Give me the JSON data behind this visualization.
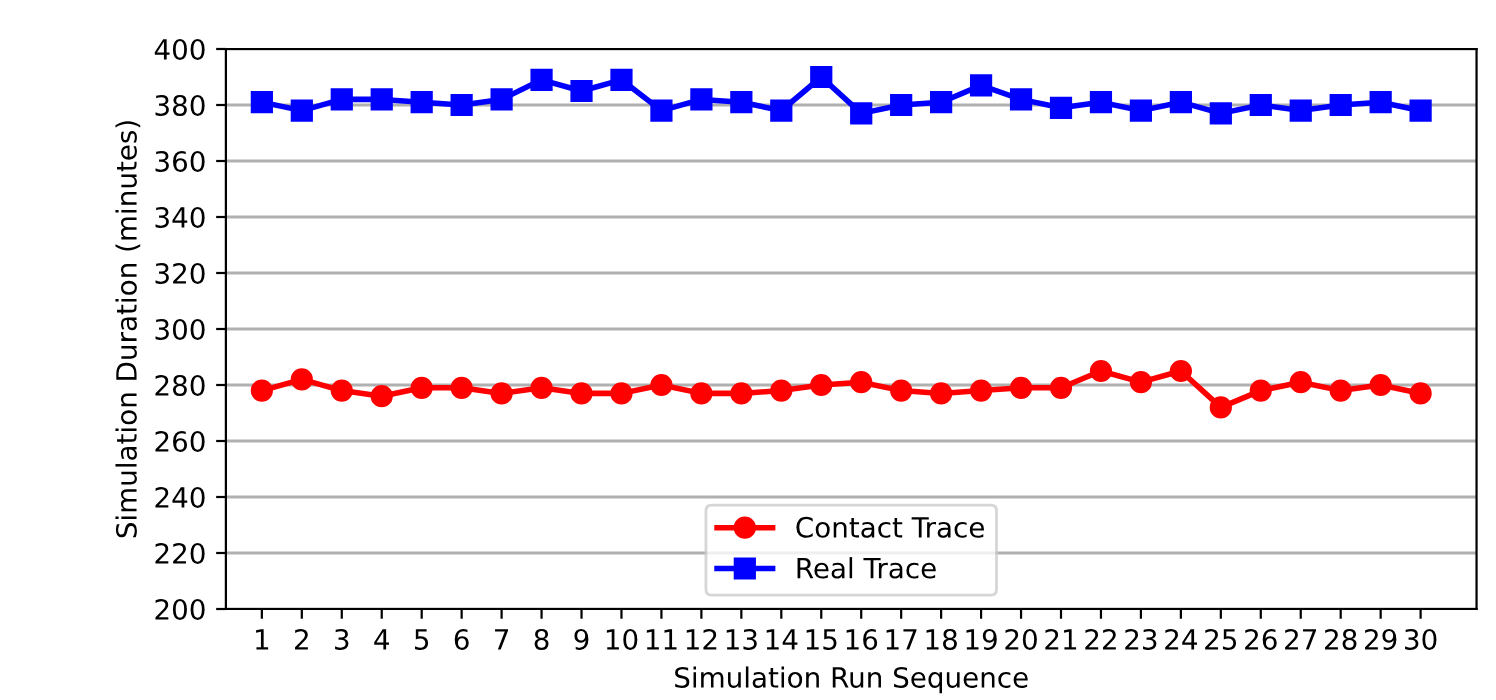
{
  "chart_data": {
    "type": "line",
    "xlabel": "Simulation Run Sequence",
    "ylabel": "Simulation Duration (minutes)",
    "x": [
      1,
      2,
      3,
      4,
      5,
      6,
      7,
      8,
      9,
      10,
      11,
      12,
      13,
      14,
      15,
      16,
      17,
      18,
      19,
      20,
      21,
      22,
      23,
      24,
      25,
      26,
      27,
      28,
      29,
      30
    ],
    "series": [
      {
        "name": "Contact Trace",
        "color": "#ff0000",
        "marker": "circle",
        "values": [
          278,
          282,
          278,
          276,
          279,
          279,
          277,
          279,
          277,
          277,
          280,
          277,
          277,
          278,
          280,
          281,
          278,
          277,
          278,
          279,
          279,
          285,
          281,
          285,
          272,
          278,
          281,
          278,
          280,
          277
        ]
      },
      {
        "name": "Real Trace",
        "color": "#0000ff",
        "marker": "square",
        "values": [
          381,
          378,
          382,
          382,
          381,
          380,
          382,
          389,
          385,
          389,
          378,
          382,
          381,
          378,
          390,
          377,
          380,
          381,
          387,
          382,
          379,
          381,
          378,
          381,
          377,
          380,
          378,
          380,
          381,
          378
        ]
      }
    ],
    "xlim": [
      0.1,
      31.4
    ],
    "xticks": [
      1,
      2,
      3,
      4,
      5,
      6,
      7,
      8,
      9,
      10,
      11,
      12,
      13,
      14,
      15,
      16,
      17,
      18,
      19,
      20,
      21,
      22,
      23,
      24,
      25,
      26,
      27,
      28,
      29,
      30
    ],
    "ylim": [
      200,
      400
    ],
    "yticks": [
      200,
      220,
      240,
      260,
      280,
      300,
      320,
      340,
      360,
      380,
      400
    ],
    "grid": "y",
    "legend": "bottom",
    "line_style": "solid"
  }
}
